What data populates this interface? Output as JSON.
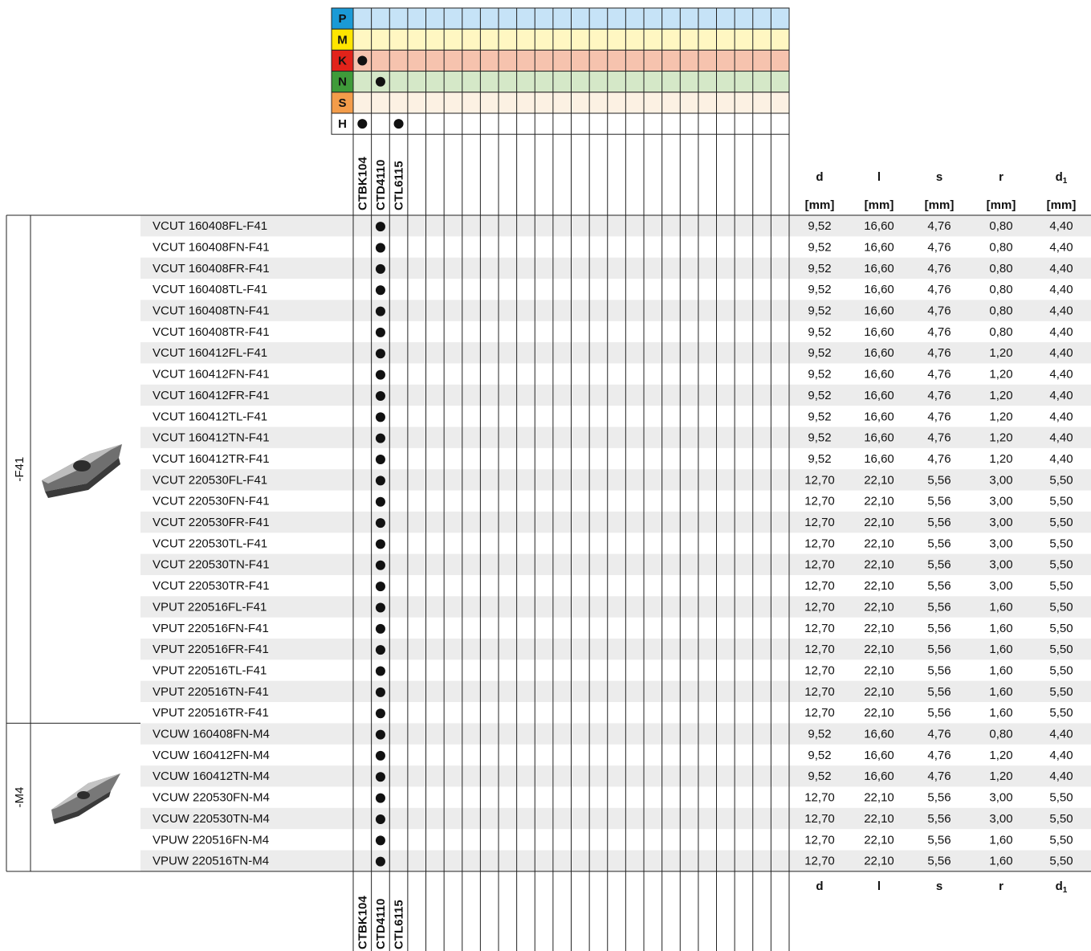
{
  "materials": [
    {
      "code": "P",
      "marks": []
    },
    {
      "code": "M",
      "marks": []
    },
    {
      "code": "K",
      "marks": [
        0
      ]
    },
    {
      "code": "N",
      "marks": [
        1
      ]
    },
    {
      "code": "S",
      "marks": []
    },
    {
      "code": "H",
      "marks": [
        0,
        2
      ]
    }
  ],
  "grades": [
    "CTBK104",
    "CTD4110",
    "CTL6115"
  ],
  "columns": [
    {
      "symbol": "d",
      "unit": "[mm]"
    },
    {
      "symbol": "l",
      "unit": "[mm]"
    },
    {
      "symbol": "s",
      "unit": "[mm]"
    },
    {
      "symbol": "r",
      "unit": "[mm]"
    },
    {
      "symbol": "d",
      "sub": "1",
      "unit": "[mm]"
    }
  ],
  "groups": [
    {
      "label": "-F41",
      "rows": [
        {
          "designation": "VCUT 160408FL-F41",
          "marks": [
            1
          ],
          "values": [
            "9,52",
            "16,60",
            "4,76",
            "0,80",
            "4,40"
          ]
        },
        {
          "designation": "VCUT 160408FN-F41",
          "marks": [
            1
          ],
          "values": [
            "9,52",
            "16,60",
            "4,76",
            "0,80",
            "4,40"
          ]
        },
        {
          "designation": "VCUT 160408FR-F41",
          "marks": [
            1
          ],
          "values": [
            "9,52",
            "16,60",
            "4,76",
            "0,80",
            "4,40"
          ]
        },
        {
          "designation": "VCUT 160408TL-F41",
          "marks": [
            1
          ],
          "values": [
            "9,52",
            "16,60",
            "4,76",
            "0,80",
            "4,40"
          ]
        },
        {
          "designation": "VCUT 160408TN-F41",
          "marks": [
            1
          ],
          "values": [
            "9,52",
            "16,60",
            "4,76",
            "0,80",
            "4,40"
          ]
        },
        {
          "designation": "VCUT 160408TR-F41",
          "marks": [
            1
          ],
          "values": [
            "9,52",
            "16,60",
            "4,76",
            "0,80",
            "4,40"
          ]
        },
        {
          "designation": "VCUT 160412FL-F41",
          "marks": [
            1
          ],
          "values": [
            "9,52",
            "16,60",
            "4,76",
            "1,20",
            "4,40"
          ]
        },
        {
          "designation": "VCUT 160412FN-F41",
          "marks": [
            1
          ],
          "values": [
            "9,52",
            "16,60",
            "4,76",
            "1,20",
            "4,40"
          ]
        },
        {
          "designation": "VCUT 160412FR-F41",
          "marks": [
            1
          ],
          "values": [
            "9,52",
            "16,60",
            "4,76",
            "1,20",
            "4,40"
          ]
        },
        {
          "designation": "VCUT 160412TL-F41",
          "marks": [
            1
          ],
          "values": [
            "9,52",
            "16,60",
            "4,76",
            "1,20",
            "4,40"
          ]
        },
        {
          "designation": "VCUT 160412TN-F41",
          "marks": [
            1
          ],
          "values": [
            "9,52",
            "16,60",
            "4,76",
            "1,20",
            "4,40"
          ]
        },
        {
          "designation": "VCUT 160412TR-F41",
          "marks": [
            1
          ],
          "values": [
            "9,52",
            "16,60",
            "4,76",
            "1,20",
            "4,40"
          ]
        },
        {
          "designation": "VCUT 220530FL-F41",
          "marks": [
            1
          ],
          "values": [
            "12,70",
            "22,10",
            "5,56",
            "3,00",
            "5,50"
          ]
        },
        {
          "designation": "VCUT 220530FN-F41",
          "marks": [
            1
          ],
          "values": [
            "12,70",
            "22,10",
            "5,56",
            "3,00",
            "5,50"
          ]
        },
        {
          "designation": "VCUT 220530FR-F41",
          "marks": [
            1
          ],
          "values": [
            "12,70",
            "22,10",
            "5,56",
            "3,00",
            "5,50"
          ]
        },
        {
          "designation": "VCUT 220530TL-F41",
          "marks": [
            1
          ],
          "values": [
            "12,70",
            "22,10",
            "5,56",
            "3,00",
            "5,50"
          ]
        },
        {
          "designation": "VCUT 220530TN-F41",
          "marks": [
            1
          ],
          "values": [
            "12,70",
            "22,10",
            "5,56",
            "3,00",
            "5,50"
          ]
        },
        {
          "designation": "VCUT 220530TR-F41",
          "marks": [
            1
          ],
          "values": [
            "12,70",
            "22,10",
            "5,56",
            "3,00",
            "5,50"
          ]
        },
        {
          "designation": "VPUT 220516FL-F41",
          "marks": [
            1
          ],
          "values": [
            "12,70",
            "22,10",
            "5,56",
            "1,60",
            "5,50"
          ]
        },
        {
          "designation": "VPUT 220516FN-F41",
          "marks": [
            1
          ],
          "values": [
            "12,70",
            "22,10",
            "5,56",
            "1,60",
            "5,50"
          ]
        },
        {
          "designation": "VPUT 220516FR-F41",
          "marks": [
            1
          ],
          "values": [
            "12,70",
            "22,10",
            "5,56",
            "1,60",
            "5,50"
          ]
        },
        {
          "designation": "VPUT 220516TL-F41",
          "marks": [
            1
          ],
          "values": [
            "12,70",
            "22,10",
            "5,56",
            "1,60",
            "5,50"
          ]
        },
        {
          "designation": "VPUT 220516TN-F41",
          "marks": [
            1
          ],
          "values": [
            "12,70",
            "22,10",
            "5,56",
            "1,60",
            "5,50"
          ]
        },
        {
          "designation": "VPUT 220516TR-F41",
          "marks": [
            1
          ],
          "values": [
            "12,70",
            "22,10",
            "5,56",
            "1,60",
            "5,50"
          ]
        }
      ]
    },
    {
      "label": "-M4",
      "rows": [
        {
          "designation": "VCUW 160408FN-M4",
          "marks": [
            1
          ],
          "values": [
            "9,52",
            "16,60",
            "4,76",
            "0,80",
            "4,40"
          ]
        },
        {
          "designation": "VCUW 160412FN-M4",
          "marks": [
            1
          ],
          "values": [
            "9,52",
            "16,60",
            "4,76",
            "1,20",
            "4,40"
          ]
        },
        {
          "designation": "VCUW 160412TN-M4",
          "marks": [
            1
          ],
          "values": [
            "9,52",
            "16,60",
            "4,76",
            "1,20",
            "4,40"
          ]
        },
        {
          "designation": "VCUW 220530FN-M4",
          "marks": [
            1
          ],
          "values": [
            "12,70",
            "22,10",
            "5,56",
            "3,00",
            "5,50"
          ]
        },
        {
          "designation": "VCUW 220530TN-M4",
          "marks": [
            1
          ],
          "values": [
            "12,70",
            "22,10",
            "5,56",
            "3,00",
            "5,50"
          ]
        },
        {
          "designation": "VPUW 220516FN-M4",
          "marks": [
            1
          ],
          "values": [
            "12,70",
            "22,10",
            "5,56",
            "1,60",
            "5,50"
          ]
        },
        {
          "designation": "VPUW 220516TN-M4",
          "marks": [
            1
          ],
          "values": [
            "12,70",
            "22,10",
            "5,56",
            "1,60",
            "5,50"
          ]
        }
      ]
    }
  ]
}
